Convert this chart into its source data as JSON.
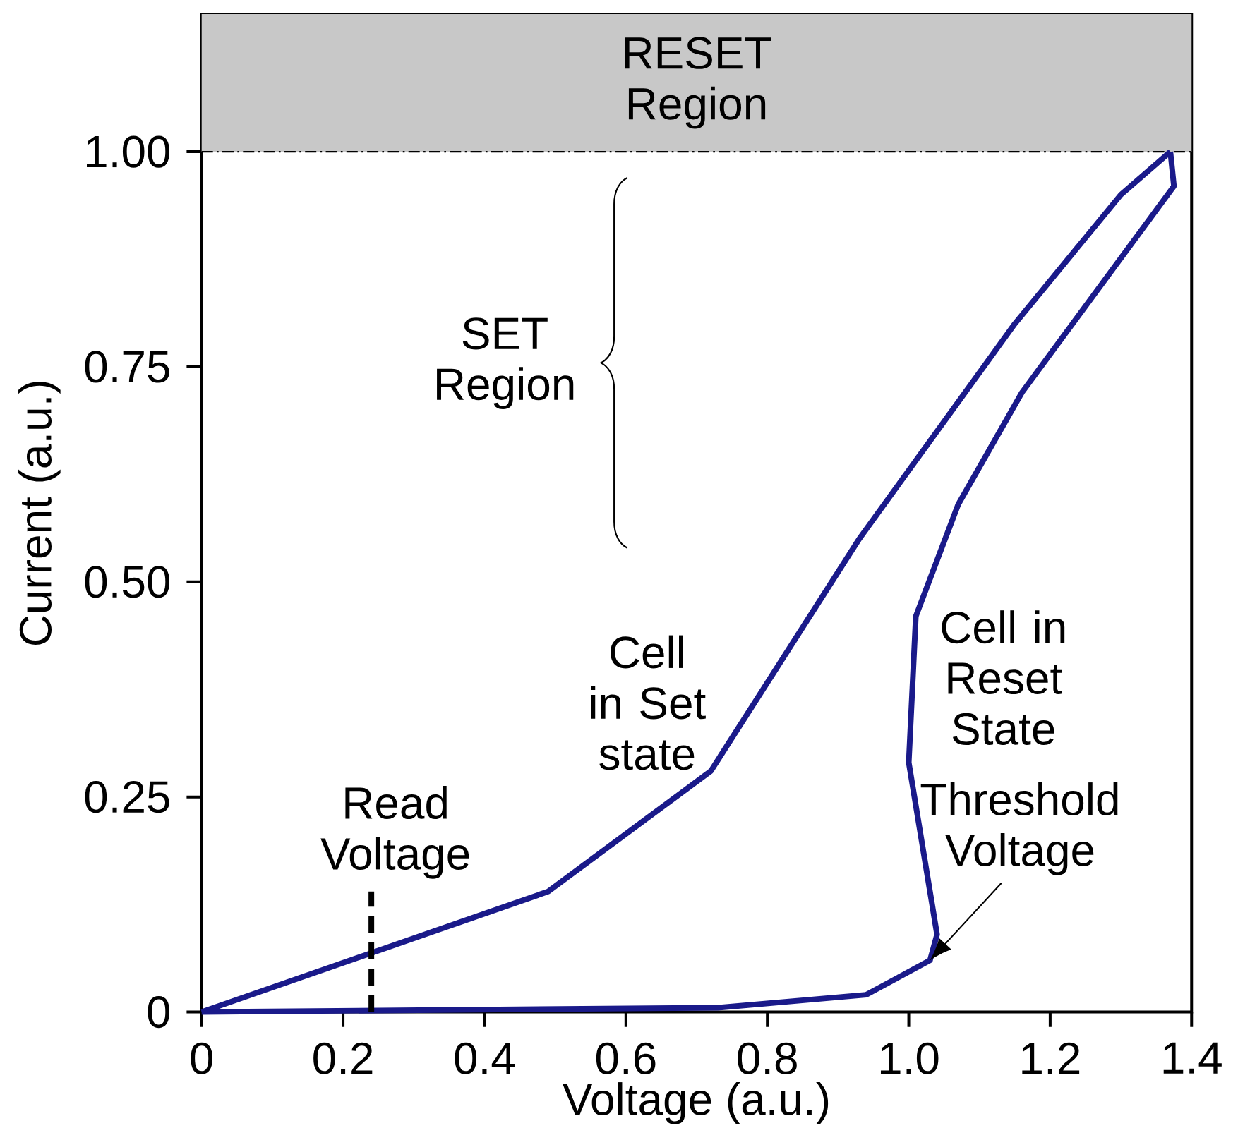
{
  "chart_data": {
    "type": "line",
    "xlabel": "Voltage (a.u.)",
    "ylabel": "Current (a.u.)",
    "xlim": [
      0,
      1.4
    ],
    "ylim": [
      0,
      1.16
    ],
    "xticks": [
      0,
      0.2,
      0.4,
      0.6,
      0.8,
      {
        "value": 1,
        "label": "1.0"
      },
      1.2,
      1.4
    ],
    "yticks": [
      0,
      0.25,
      {
        "value": 0.5,
        "label": "0.50"
      },
      0.75,
      {
        "value": 1,
        "label": "1.00"
      }
    ],
    "series": [
      {
        "color": "#1a1a8a",
        "x": [
          0,
          0.49,
          0.72,
          0.93,
          1.15,
          1.3,
          1.37
        ],
        "values": [
          0,
          0.14,
          0.28,
          0.55,
          0.8,
          0.95,
          1.0
        ]
      },
      {
        "color": "#1a1a8a",
        "x": [
          0,
          0.73,
          0.94,
          1.03,
          1.04,
          1.0,
          1.01,
          1.07,
          1.16,
          1.375,
          1.37
        ],
        "values": [
          0,
          0.005,
          0.02,
          0.06,
          0.09,
          0.29,
          0.46,
          0.59,
          0.72,
          0.96,
          1.0
        ]
      },
      {
        "color": "#000000",
        "line_style": "dashed",
        "x": [
          0.24,
          0.24
        ],
        "values": [
          0,
          0.14
        ]
      }
    ],
    "bands": [
      {
        "axis": "y",
        "from": 1.0,
        "to": 1.16,
        "label": "RESET Region",
        "color": "#c8c8c8"
      }
    ],
    "annotations": [
      "Read Voltage",
      "Cell in Set state",
      "Cell in Reset State",
      {
        "text": "Threshold Voltage",
        "x": 1.03,
        "y": 0.06
      },
      "SET Region"
    ]
  }
}
